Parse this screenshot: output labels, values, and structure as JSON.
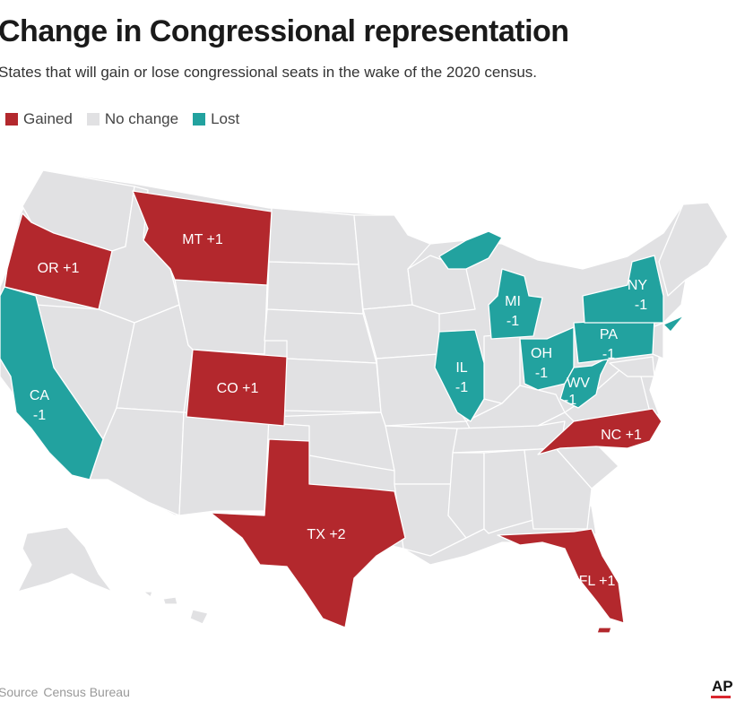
{
  "title": "Change in Congressional representation",
  "subtitle": "States that will gain or lose congressional seats in the wake of the 2020 census.",
  "legend": [
    {
      "key": "gained",
      "label": "Gained",
      "color": "#b3282d"
    },
    {
      "key": "none",
      "label": "No change",
      "color": "#e1e1e3"
    },
    {
      "key": "lost",
      "label": "Lost",
      "color": "#22a29f"
    }
  ],
  "colors": {
    "gained": "#b3282d",
    "no_change": "#e1e1e3",
    "lost": "#22a29f",
    "border": "#ffffff"
  },
  "states": {
    "OR": {
      "label": "OR +1",
      "status": "gained",
      "change": 1
    },
    "MT": {
      "label": "MT +1",
      "status": "gained",
      "change": 1
    },
    "CO": {
      "label": "CO +1",
      "status": "gained",
      "change": 1
    },
    "TX": {
      "label": "TX +2",
      "status": "gained",
      "change": 2
    },
    "NC": {
      "label": "NC +1",
      "status": "gained",
      "change": 1
    },
    "FL": {
      "label": "FL +1",
      "status": "gained",
      "change": 1
    },
    "CA": {
      "label_line1": "CA",
      "label_line2": "-1",
      "status": "lost",
      "change": -1
    },
    "IL": {
      "label_line1": "IL",
      "label_line2": "-1",
      "status": "lost",
      "change": -1
    },
    "MI": {
      "label_line1": "MI",
      "label_line2": "-1",
      "status": "lost",
      "change": -1
    },
    "OH": {
      "label_line1": "OH",
      "label_line2": "-1",
      "status": "lost",
      "change": -1
    },
    "PA": {
      "label_line1": "PA",
      "label_line2": "-1",
      "status": "lost",
      "change": -1
    },
    "NY": {
      "label_line1": "NY",
      "label_line2": "-1",
      "status": "lost",
      "change": -1
    },
    "WV": {
      "label_line1": "WV",
      "label_line2": "-1",
      "status": "lost",
      "change": -1
    }
  },
  "source": {
    "prefix": "Source",
    "value": "Census Bureau"
  },
  "credit": "AP"
}
